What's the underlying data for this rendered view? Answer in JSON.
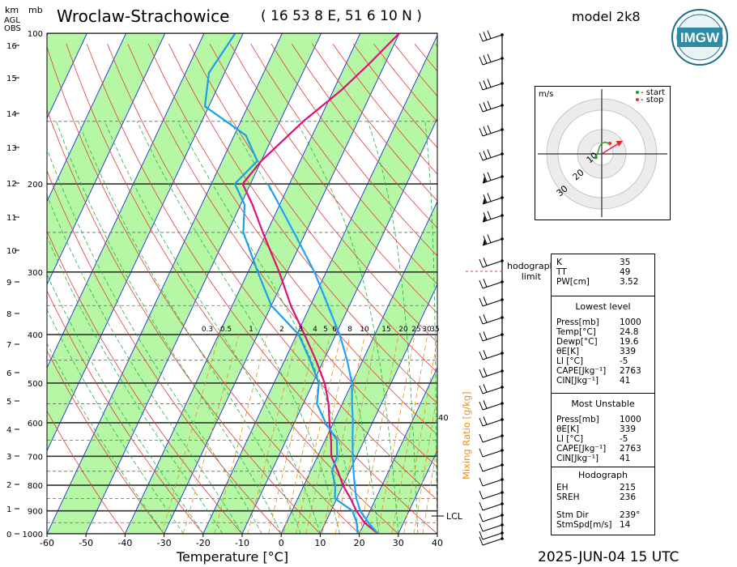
{
  "header": {
    "station": "Wroclaw-Strachowice",
    "coords": "( 16 53 8 E, 51 6 10 N )",
    "model": "model 2k8",
    "date": "2025-JUN-04   15 UTC",
    "logo_text": "IMGW"
  },
  "axes": {
    "km_label": "km",
    "agl_label": "AGL",
    "obs_label": "OBS",
    "mb_label": "mb",
    "x_title": "Temperature [°C]",
    "x_ticks": [
      "-60",
      "-50",
      "-40",
      "-30",
      "-20",
      "-10",
      "0",
      "10",
      "20",
      "30",
      "40"
    ],
    "km_ticks": [
      "0",
      "1",
      "2",
      "3",
      "4",
      "5",
      "6",
      "7",
      "8",
      "9",
      "10",
      "11",
      "12",
      "13",
      "14",
      "15",
      "16"
    ],
    "mb_ticks": [
      "1000",
      "900",
      "800",
      "700",
      "600",
      "500",
      "400",
      "300",
      "200",
      "100"
    ],
    "mixing_ratio_title": "Mixing Ratio [g/kg]",
    "mixing_ratio_ticks": [
      "0.3",
      "0.5",
      "1",
      "2",
      "3",
      "4",
      "5",
      "6",
      "8",
      "10",
      "15",
      "20",
      "25",
      "30",
      "35"
    ],
    "mixing_ratio_extra": "40",
    "lcl_label": "LCL"
  },
  "chart_data": {
    "type": "line",
    "chart_kind": "skew-T log-p sounding",
    "xlabel": "Temperature [°C]",
    "ylabel": "mb",
    "xlim": [
      -60,
      40
    ],
    "ylim_hpa": [
      1000,
      100
    ],
    "y_scale": "log",
    "series": [
      {
        "color": "#dd1077",
        "points": [
          [
            1000,
            24.8
          ],
          [
            950,
            20.0
          ],
          [
            900,
            16.5
          ],
          [
            850,
            13.5
          ],
          [
            800,
            10.0
          ],
          [
            750,
            7.0
          ],
          [
            700,
            3.5
          ],
          [
            650,
            1.5
          ],
          [
            600,
            -1.0
          ],
          [
            550,
            -3.5
          ],
          [
            500,
            -7.0
          ],
          [
            450,
            -12.0
          ],
          [
            400,
            -18.0
          ],
          [
            350,
            -25.0
          ],
          [
            300,
            -32.0
          ],
          [
            250,
            -41.0
          ],
          [
            220,
            -47.0
          ],
          [
            200,
            -52.0
          ],
          [
            180,
            -50.0
          ],
          [
            150,
            -44.0
          ],
          [
            130,
            -38.0
          ],
          [
            115,
            -34.0
          ],
          [
            100,
            -30.0
          ]
        ]
      },
      {
        "color": "#1aa0e8",
        "points": [
          [
            1000,
            19.6
          ],
          [
            950,
            18.0
          ],
          [
            900,
            15.5
          ],
          [
            850,
            9.5
          ],
          [
            800,
            8.0
          ],
          [
            750,
            5.5
          ],
          [
            700,
            5.0
          ],
          [
            650,
            3.0
          ],
          [
            600,
            -2.0
          ],
          [
            550,
            -6.5
          ],
          [
            500,
            -8.5
          ],
          [
            450,
            -13.5
          ],
          [
            400,
            -19.5
          ],
          [
            350,
            -30.0
          ],
          [
            300,
            -37.5
          ],
          [
            250,
            -46.0
          ],
          [
            220,
            -49.0
          ],
          [
            200,
            -54.0
          ],
          [
            180,
            -51.0
          ],
          [
            160,
            -57.0
          ],
          [
            140,
            -71.0
          ],
          [
            120,
            -74.0
          ],
          [
            100,
            -72.0
          ]
        ]
      },
      {
        "color": "#21a0ff",
        "points": [
          [
            1000,
            24.8
          ],
          [
            950,
            21.0
          ],
          [
            900,
            17.5
          ],
          [
            850,
            15.0
          ],
          [
            800,
            13.0
          ],
          [
            750,
            11.0
          ],
          [
            700,
            9.0
          ],
          [
            650,
            7.0
          ],
          [
            600,
            5.0
          ],
          [
            550,
            2.5
          ],
          [
            500,
            0.0
          ],
          [
            450,
            -4.0
          ],
          [
            400,
            -9.0
          ],
          [
            350,
            -15.5
          ],
          [
            300,
            -23.0
          ],
          [
            250,
            -33.0
          ],
          [
            200,
            -45.5
          ]
        ]
      }
    ],
    "hodograph": {
      "unit": "m/s",
      "rings": [
        "10",
        "20",
        "30"
      ],
      "legend": {
        "start": "- start",
        "stop": "- stop"
      },
      "points": [
        [
          -5,
          -3
        ],
        [
          -3,
          2
        ],
        [
          -2,
          6
        ],
        [
          0,
          9
        ],
        [
          3,
          10
        ],
        [
          7,
          9
        ]
      ],
      "storm_vector": [
        8,
        5
      ]
    }
  },
  "side_labels": {
    "hodograph_limit": "hodograph\nlimit"
  },
  "indices": {
    "top": [
      {
        "k": "K",
        "v": "35"
      },
      {
        "k": "TT",
        "v": "49"
      },
      {
        "k": "PW[cm]",
        "v": "3.52"
      }
    ],
    "lowest_title": "Lowest level",
    "lowest": [
      {
        "k": "Press[mb]",
        "v": "1000"
      },
      {
        "k": "Temp[°C]",
        "v": "24.8"
      },
      {
        "k": "Dewp[°C]",
        "v": "19.6"
      },
      {
        "k": "θE[K]",
        "v": "339"
      },
      {
        "k": "LI [°C]",
        "v": "-5"
      },
      {
        "k": "CAPE[Jkg⁻¹]",
        "v": "2763"
      },
      {
        "k": "CIN[Jkg⁻¹]",
        "v": "41"
      }
    ],
    "unstable_title": "Most Unstable",
    "unstable": [
      {
        "k": "Press[mb]",
        "v": "1000"
      },
      {
        "k": "θE[K]",
        "v": "339"
      },
      {
        "k": "LI [°C]",
        "v": "-5"
      },
      {
        "k": "CAPE[Jkg⁻¹]",
        "v": "2763"
      },
      {
        "k": "CIN[Jkg⁻¹]",
        "v": "41"
      }
    ],
    "hodo_title": "Hodograph",
    "hodo": [
      {
        "k": "EH",
        "v": "215"
      },
      {
        "k": "SREH",
        "v": "236"
      },
      {
        "k": "Stm Dir",
        "v": "239°"
      },
      {
        "k": "StmSpd[m/s]",
        "v": "14"
      }
    ]
  },
  "colors": {
    "temp": "#dd1077",
    "dew": "#1aa0e8",
    "parcel": "#21a0ff",
    "isotherm_band": "#b6f7a6",
    "isotherm": "#1b2fd6",
    "dry": "#e13b3b",
    "moist": "#22b14c",
    "mixing": "#e8901e"
  }
}
